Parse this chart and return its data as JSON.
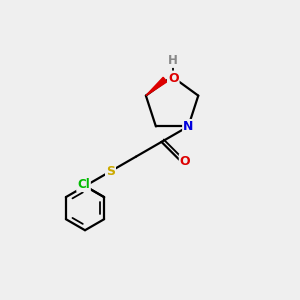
{
  "background_color": "#efefef",
  "atom_colors": {
    "C": "#000000",
    "N": "#0000dd",
    "O": "#dd0000",
    "S": "#ccaa00",
    "Cl": "#00bb00",
    "H": "#888888"
  },
  "bond_color": "#000000",
  "bond_width": 1.6,
  "figsize": [
    3.0,
    3.0
  ],
  "dpi": 100
}
